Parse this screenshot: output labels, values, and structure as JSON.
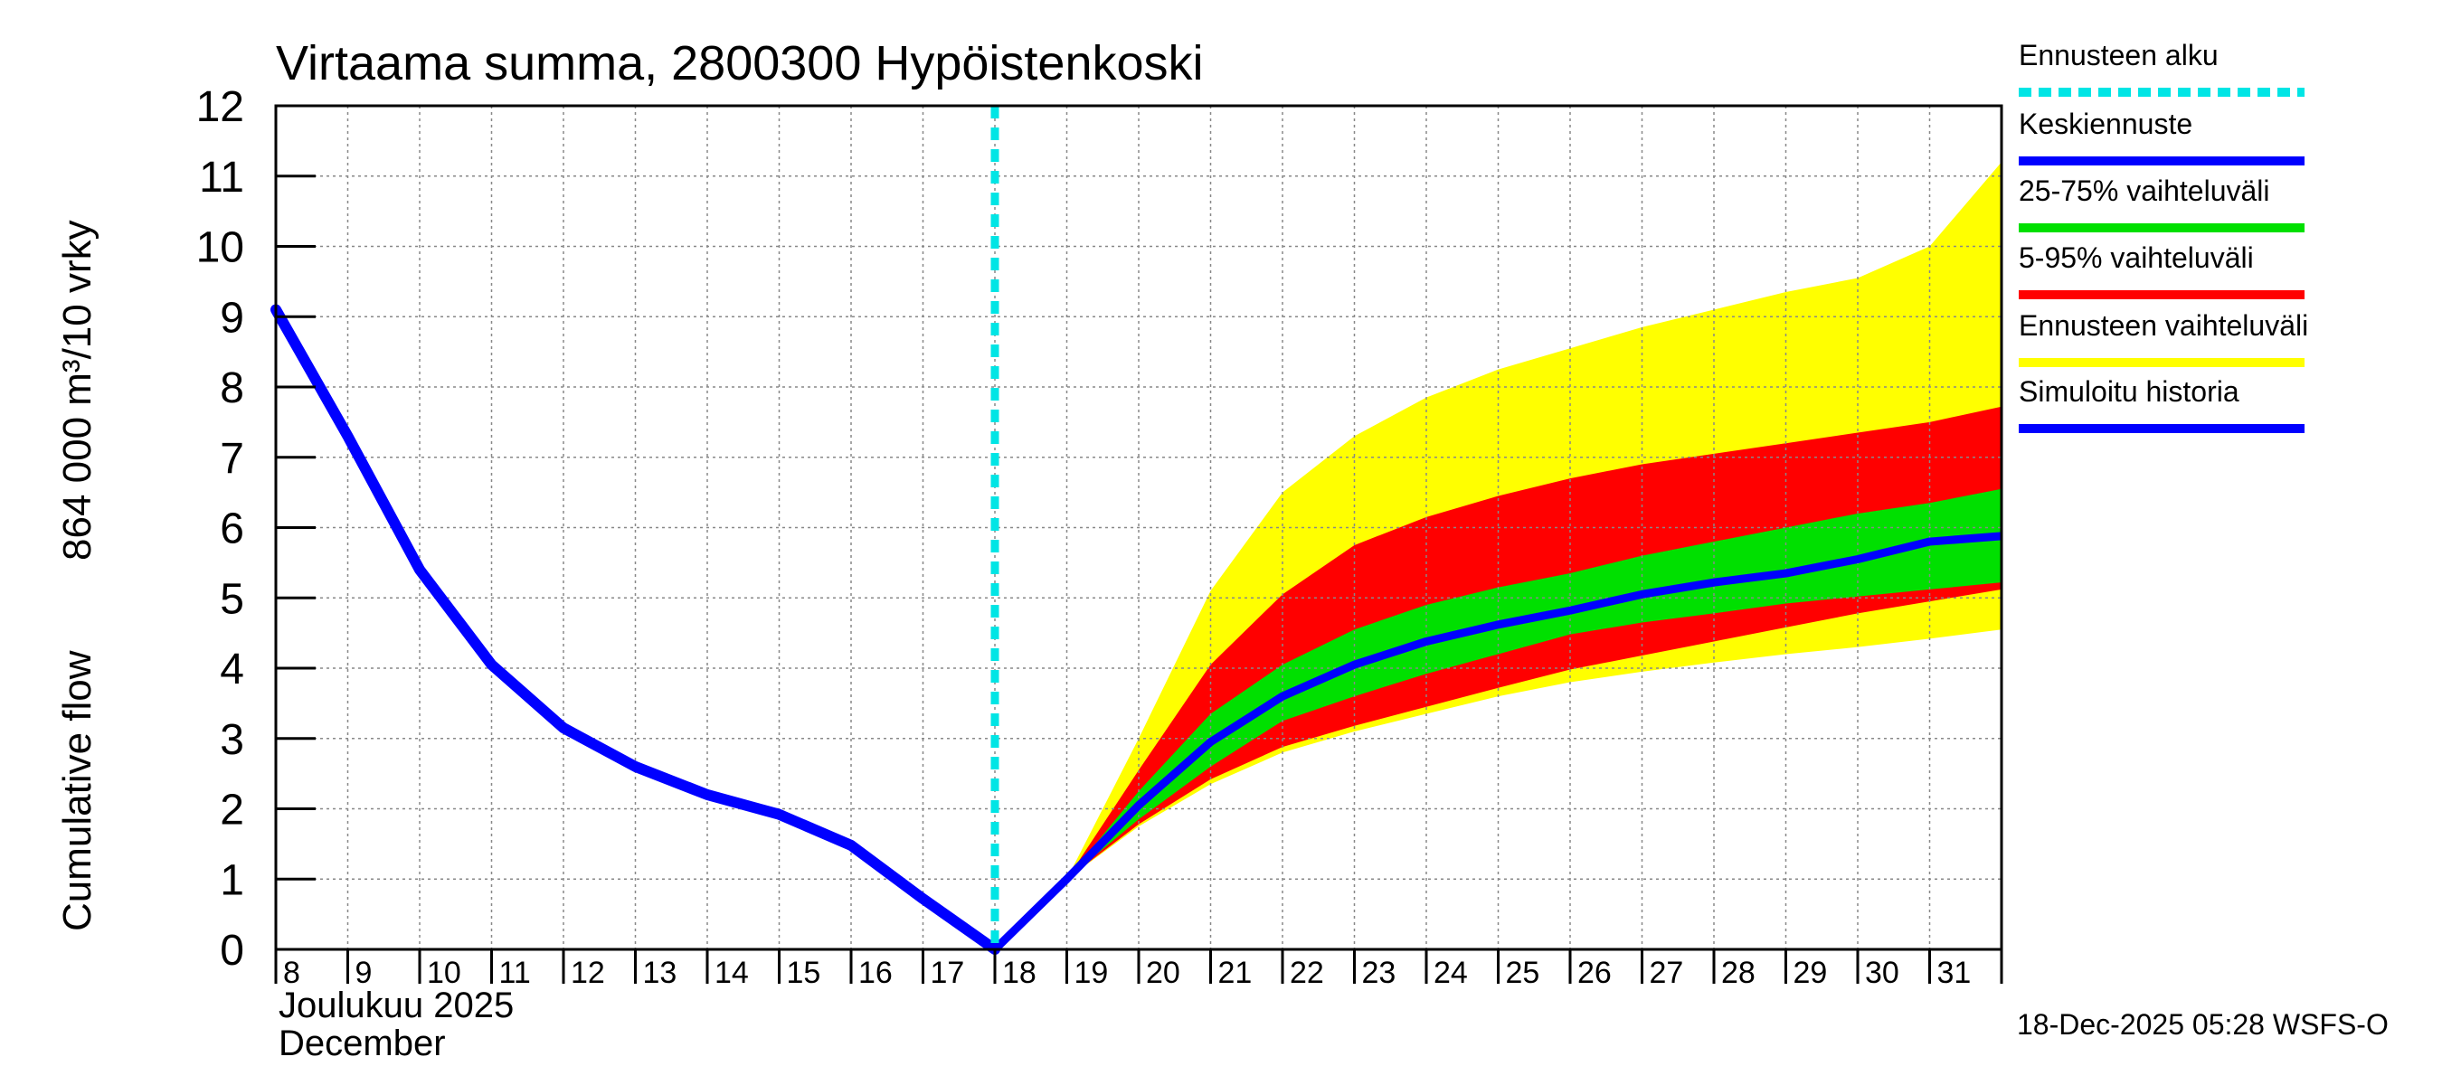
{
  "chart_data": {
    "type": "area",
    "title": "Virtaama summa, 2800300 Hypöistenkoski",
    "ylabel_line1": "Cumulative flow",
    "ylabel_line2": "864 000 m³/10 vrky",
    "ylim": [
      0,
      12
    ],
    "yticks": [
      "0",
      "1",
      "2",
      "3",
      "4",
      "5",
      "6",
      "7",
      "8",
      "9",
      "10",
      "11",
      "12"
    ],
    "xlim": [
      8,
      32
    ],
    "xtick_values": [
      8,
      9,
      10,
      11,
      12,
      13,
      14,
      15,
      16,
      17,
      18,
      19,
      20,
      21,
      22,
      23,
      24,
      25,
      26,
      27,
      28,
      29,
      30,
      31
    ],
    "xtick_labels": [
      "8",
      "9",
      "10",
      "11",
      "12",
      "13",
      "14",
      "15",
      "16",
      "17",
      "18",
      "19",
      "20",
      "21",
      "22",
      "23",
      "24",
      "25",
      "26",
      "27",
      "28",
      "29",
      "30",
      "31"
    ],
    "month_label_fi": "Joulukuu  2025",
    "month_label_en": "December",
    "forecast_start": 18,
    "history": {
      "name": "Simuloitu historia",
      "x": [
        8,
        9,
        10,
        11,
        12,
        13,
        14,
        15,
        16,
        17,
        18
      ],
      "y": [
        9.1,
        7.3,
        5.4,
        4.05,
        3.15,
        2.6,
        2.2,
        1.92,
        1.48,
        0.72,
        0.0
      ]
    },
    "forecast_x": [
      18,
      19,
      20,
      21,
      22,
      23,
      24,
      25,
      26,
      27,
      28,
      29,
      30,
      31,
      32
    ],
    "band_outer": {
      "name": "Ennusteen vaihteluväli",
      "low": [
        0,
        1.0,
        1.75,
        2.35,
        2.8,
        3.1,
        3.35,
        3.6,
        3.8,
        3.95,
        4.08,
        4.2,
        4.3,
        4.42,
        4.55
      ],
      "high": [
        0,
        1.0,
        3.0,
        5.1,
        6.5,
        7.3,
        7.85,
        8.25,
        8.55,
        8.85,
        9.1,
        9.35,
        9.55,
        10.0,
        11.2
      ]
    },
    "band_5_95": {
      "name": "5-95% vaihteluväli",
      "low": [
        0,
        1.0,
        1.78,
        2.42,
        2.88,
        3.18,
        3.45,
        3.72,
        3.98,
        4.18,
        4.38,
        4.58,
        4.78,
        4.95,
        5.12
      ],
      "high": [
        0,
        1.0,
        2.55,
        4.05,
        5.05,
        5.75,
        6.15,
        6.45,
        6.7,
        6.9,
        7.05,
        7.2,
        7.35,
        7.5,
        7.72
      ]
    },
    "band_25_75": {
      "name": "25-75% vaihteluväli",
      "low": [
        0,
        1.0,
        1.85,
        2.6,
        3.25,
        3.6,
        3.92,
        4.2,
        4.48,
        4.65,
        4.78,
        4.92,
        5.02,
        5.12,
        5.22
      ],
      "high": [
        0,
        1.0,
        2.25,
        3.35,
        4.05,
        4.55,
        4.9,
        5.15,
        5.35,
        5.6,
        5.8,
        6.0,
        6.2,
        6.35,
        6.55
      ]
    },
    "median": {
      "name": "Keskiennuste",
      "y": [
        0,
        1.0,
        2.05,
        2.95,
        3.6,
        4.05,
        4.38,
        4.62,
        4.82,
        5.05,
        5.22,
        5.35,
        5.55,
        5.8,
        5.88
      ]
    },
    "legend": [
      {
        "label": "Ennusteen alku",
        "color": "#00e5e5",
        "style": "dashed"
      },
      {
        "label": "Keskiennuste",
        "color": "#0000ff",
        "style": "line"
      },
      {
        "label": "25-75% vaihteluväli",
        "color": "#00e000",
        "style": "line"
      },
      {
        "label": "5-95% vaihteluväli",
        "color": "#ff0000",
        "style": "line"
      },
      {
        "label": "Ennusteen vaihteluväli",
        "color": "#ffff00",
        "style": "line"
      },
      {
        "label": "Simuloitu historia",
        "color": "#0000ff",
        "style": "line"
      }
    ],
    "colors": {
      "outer": "#ffff00",
      "band5_95": "#ff0000",
      "band25_75": "#00e000",
      "median": "#0000ff",
      "history": "#0000ff",
      "forecast_start": "#00e5e5",
      "grid": "#888888"
    },
    "timestamp": "18-Dec-2025 05:28 WSFS-O"
  }
}
